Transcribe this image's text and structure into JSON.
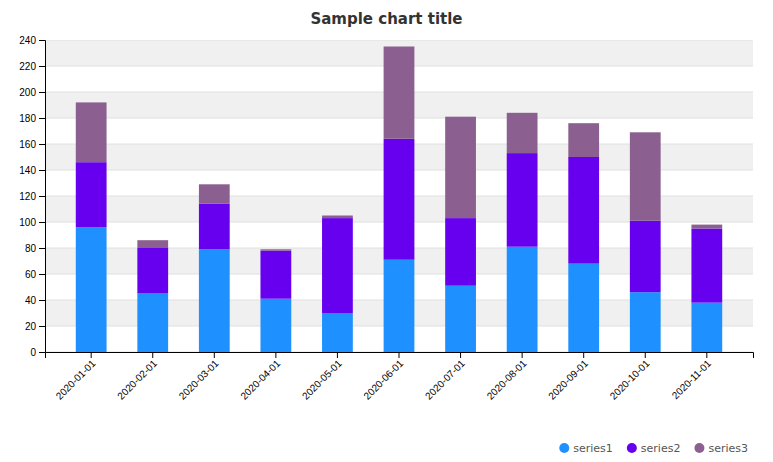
{
  "chart_data": {
    "type": "bar",
    "title": "Sample chart title",
    "categories": [
      "2020-01-01",
      "2020-02-01",
      "2020-03-01",
      "2020-04-01",
      "2020-05-01",
      "2020-06-01",
      "2020-07-01",
      "2020-08-01",
      "2020-09-01",
      "2020-10-01",
      "2020-11-01"
    ],
    "series": [
      {
        "name": "series1",
        "color": "#1E90FF",
        "values": [
          96,
          45,
          79,
          41,
          30,
          71,
          51,
          81,
          68,
          46,
          38
        ]
      },
      {
        "name": "series2",
        "color": "#6600EE",
        "values": [
          50,
          35,
          35,
          37,
          73,
          93,
          52,
          72,
          82,
          55,
          57
        ]
      },
      {
        "name": "series3",
        "color": "#8B6090",
        "values": [
          46,
          6,
          15,
          1,
          2,
          71,
          78,
          31,
          26,
          68,
          3
        ]
      }
    ],
    "stacked": true,
    "ylim": [
      0,
      240
    ],
    "yticks": [
      0,
      20,
      40,
      60,
      80,
      100,
      120,
      140,
      160,
      180,
      200,
      220,
      240
    ],
    "grid": true,
    "legend": "lower right"
  }
}
